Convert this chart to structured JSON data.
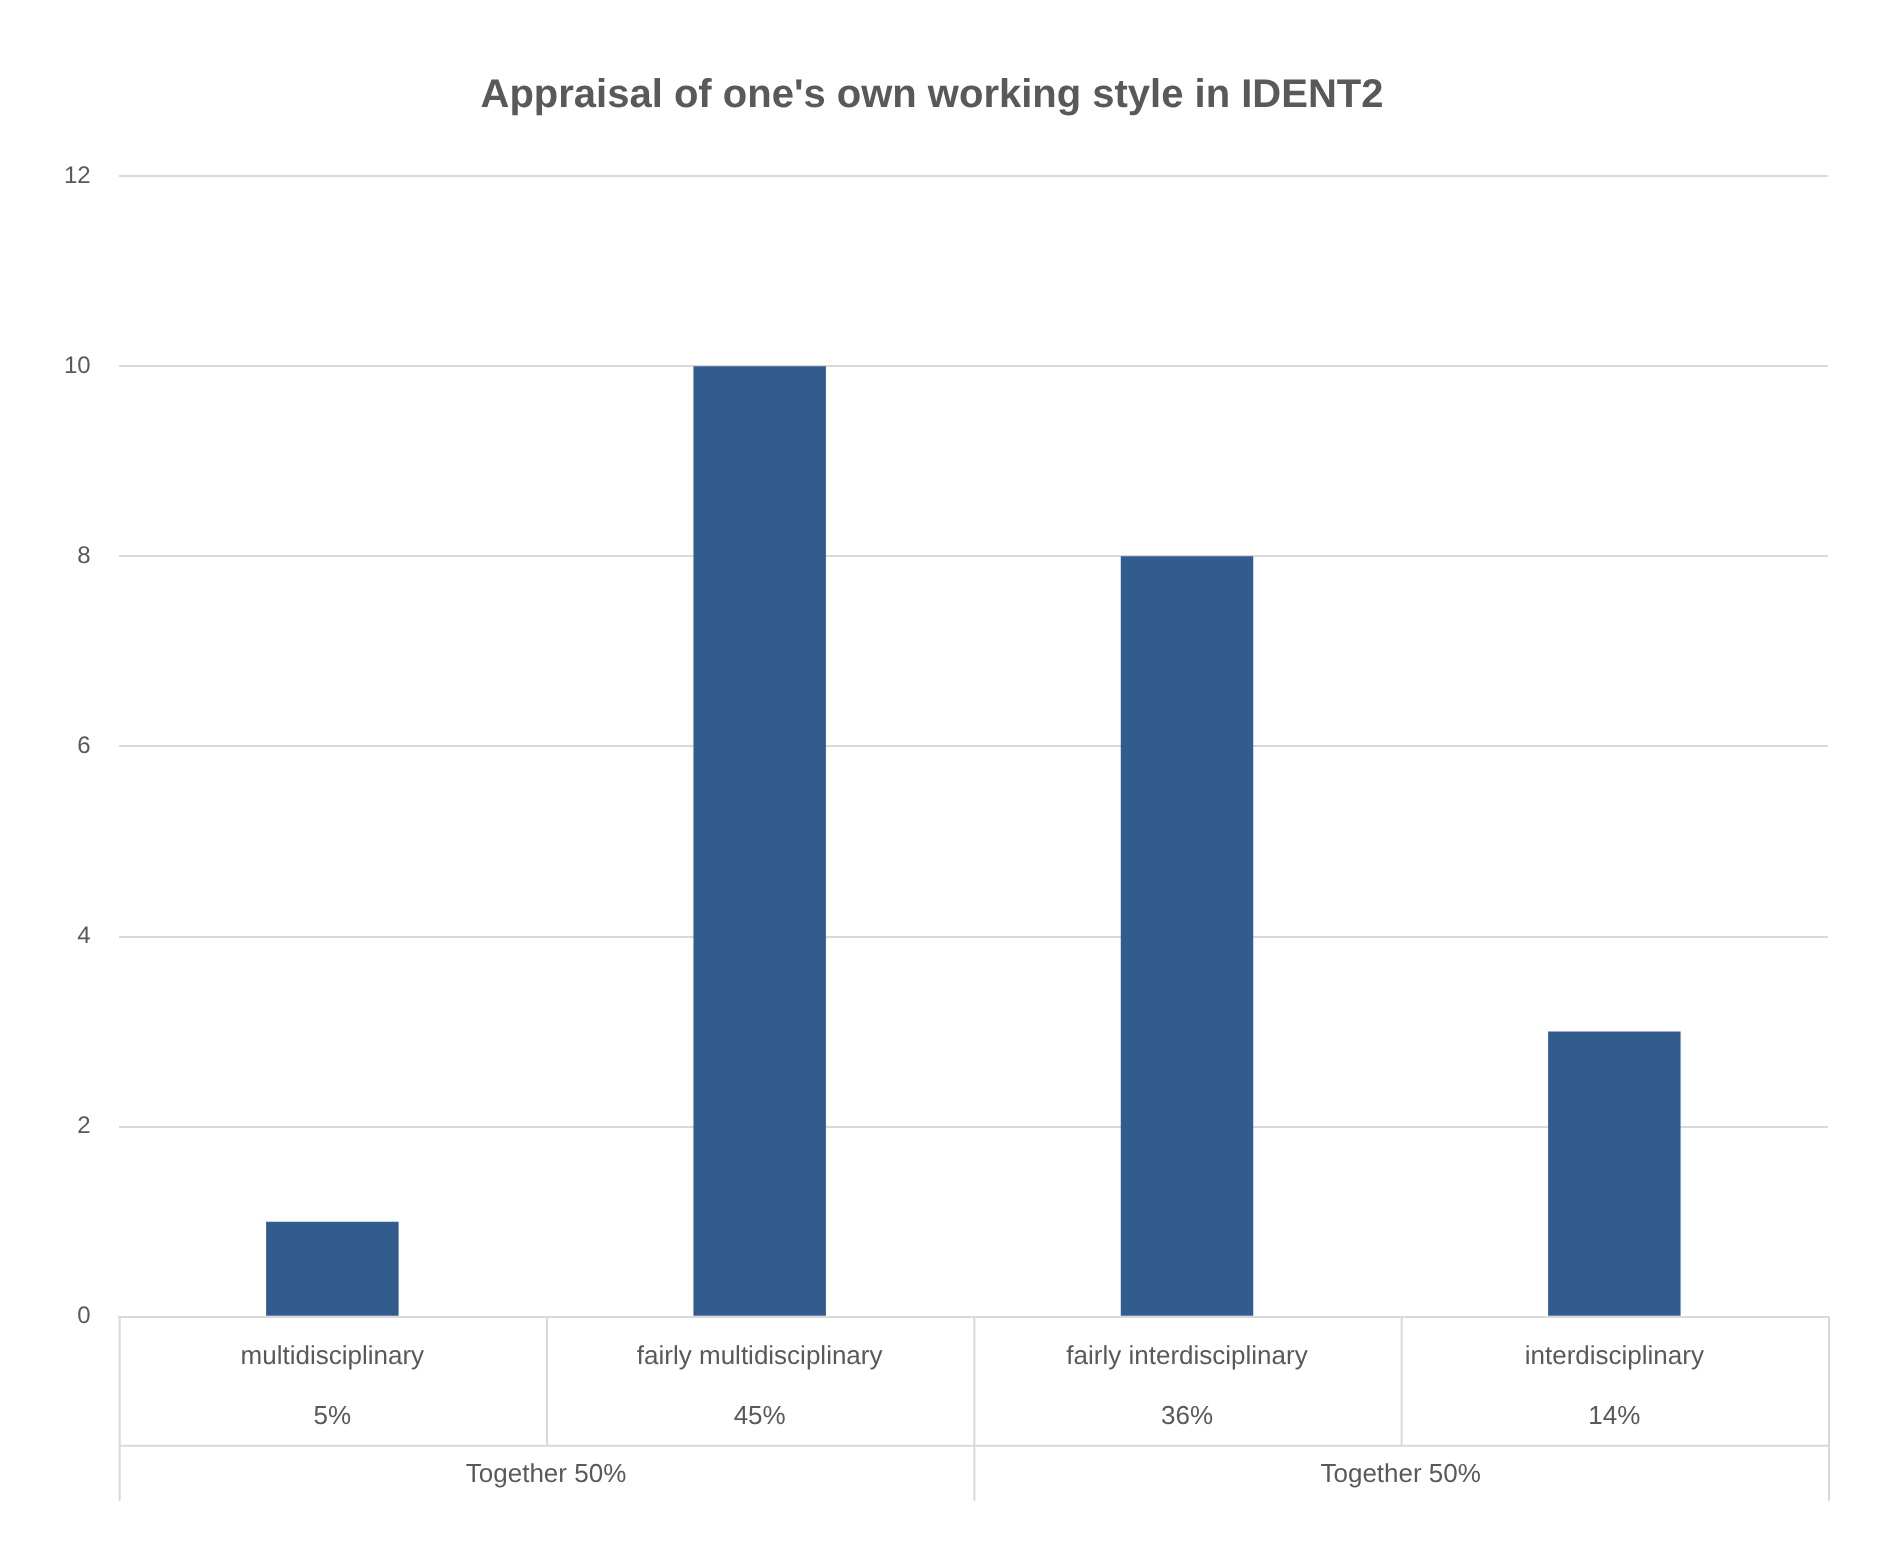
{
  "chart_data": {
    "type": "bar",
    "title": "Appraisal of one's own working style in IDENT2",
    "categories": [
      "multidisciplinary",
      "fairly multidisciplinary",
      "fairly interdisciplinary",
      "interdisciplinary"
    ],
    "values": [
      1,
      10,
      8,
      3
    ],
    "color": "#335c8e",
    "ylim": [
      0,
      12
    ],
    "yticks": [
      0,
      2,
      4,
      6,
      8,
      10,
      12
    ],
    "grid": "y",
    "legend": false,
    "annotations": [
      "5%",
      "45%",
      "36%",
      "14%",
      "Together 50%",
      "Together 50%"
    ]
  }
}
